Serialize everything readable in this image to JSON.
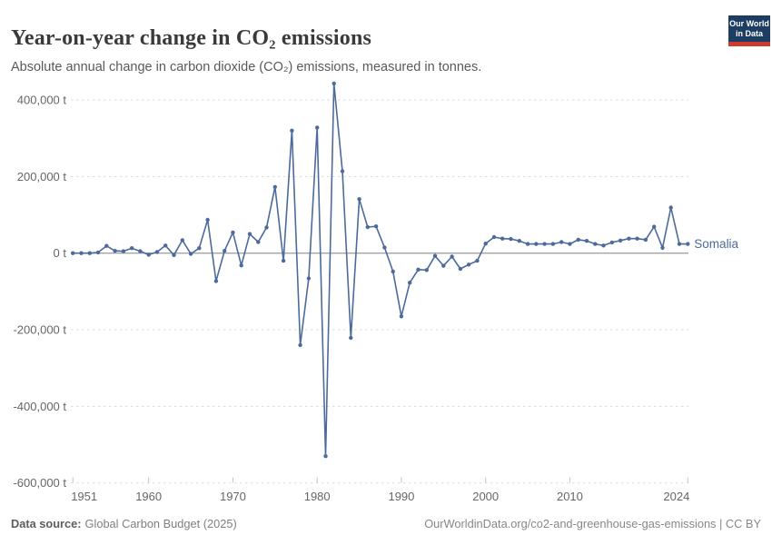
{
  "header": {
    "title": "Year-on-year change in CO₂ emissions",
    "subtitle": "Absolute annual change in carbon dioxide (CO₂) emissions, measured in tonnes."
  },
  "logo": {
    "line1": "Our World",
    "line2": "in Data"
  },
  "chart_data": {
    "type": "line",
    "entity": "Somalia",
    "unit": "t",
    "grid": true,
    "legend_position": "right-of-line-end",
    "line_color": "#4C6A9C",
    "xlim": [
      1951,
      2024
    ],
    "ylim": [
      -600000,
      450000
    ],
    "xticks": [
      1951,
      1960,
      1970,
      1980,
      1990,
      2000,
      2010,
      2024
    ],
    "yticks": [
      {
        "value": 400000,
        "label": "400,000 t"
      },
      {
        "value": 200000,
        "label": "200,000 t"
      },
      {
        "value": 0,
        "label": "0 t"
      },
      {
        "value": -200000,
        "label": "-200,000 t"
      },
      {
        "value": -400000,
        "label": "-400,000 t"
      },
      {
        "value": -600000,
        "label": "-600,000 t"
      }
    ],
    "x": [
      1951,
      1952,
      1953,
      1954,
      1955,
      1956,
      1957,
      1958,
      1959,
      1960,
      1961,
      1962,
      1963,
      1964,
      1965,
      1966,
      1967,
      1968,
      1969,
      1970,
      1971,
      1972,
      1973,
      1974,
      1975,
      1976,
      1977,
      1978,
      1979,
      1980,
      1981,
      1982,
      1983,
      1984,
      1985,
      1986,
      1987,
      1988,
      1989,
      1990,
      1991,
      1992,
      1993,
      1994,
      1995,
      1996,
      1997,
      1998,
      1999,
      2000,
      2001,
      2002,
      2003,
      2004,
      2005,
      2006,
      2007,
      2008,
      2009,
      2010,
      2011,
      2012,
      2013,
      2014,
      2015,
      2016,
      2017,
      2018,
      2019,
      2020,
      2021,
      2022,
      2023,
      2024
    ],
    "values": [
      0,
      0,
      0,
      2000,
      19000,
      6000,
      5000,
      13000,
      5000,
      -4000,
      3000,
      20000,
      -5000,
      34000,
      -2000,
      13000,
      87000,
      -73000,
      6000,
      54000,
      -32000,
      50000,
      29000,
      67000,
      173000,
      -20000,
      320000,
      -240000,
      -66000,
      328000,
      -530000,
      443000,
      214000,
      -221000,
      141000,
      68000,
      70000,
      15000,
      -48000,
      -165000,
      -77000,
      -43000,
      -44000,
      -7000,
      -33000,
      -9000,
      -41000,
      -30000,
      -20000,
      25000,
      42000,
      38000,
      37000,
      32000,
      24000,
      24000,
      24000,
      24000,
      29000,
      24000,
      35000,
      32000,
      24000,
      20000,
      28000,
      33000,
      38000,
      38000,
      35000,
      69000,
      14000,
      119000,
      24000,
      24000
    ]
  },
  "footer": {
    "source_label": "Data source:",
    "source_value": "Global Carbon Budget (2025)",
    "attribution": "OurWorldinData.org/co2-and-greenhouse-gas-emissions | CC BY"
  },
  "colors": {
    "accent_blue": "#4C6A9C",
    "logo_bg": "#1D3D63",
    "logo_stripe": "#CE3A2E",
    "gridline": "#DBDBDB",
    "zero_line": "#A3A3A3",
    "tick_text": "#666666"
  }
}
